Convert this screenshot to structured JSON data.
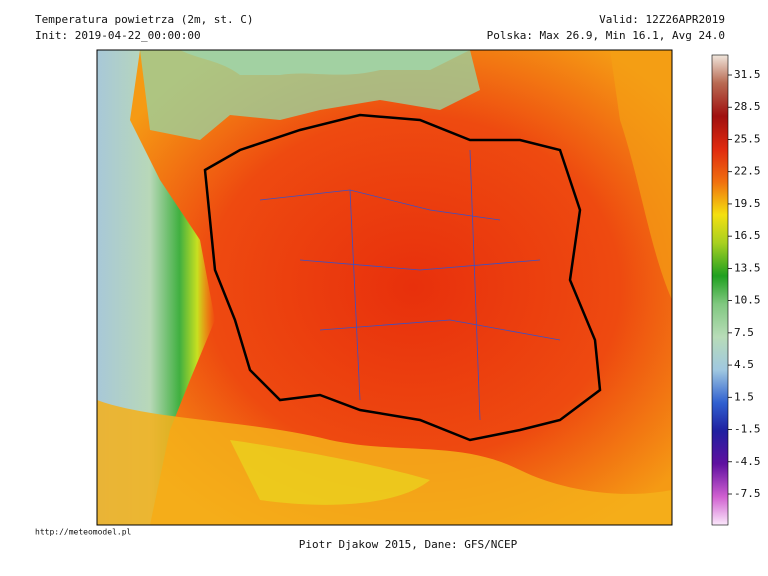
{
  "header": {
    "title": "Temperatura powietrza (2m, st. C)",
    "init": "Init: 2019-04-22_00:00:00",
    "valid": "Valid: 12Z26APR2019",
    "stats": "Polska: Max 26.9, Min 16.1, Avg 24.0"
  },
  "colorbar": {
    "ticks": [
      31.5,
      28.5,
      25.5,
      22.5,
      19.5,
      16.5,
      13.5,
      10.5,
      7.5,
      4.5,
      1.5,
      -1.5,
      -4.5,
      -7.5
    ]
  },
  "footer": {
    "url": "http://meteomodel.pl",
    "credit": "Piotr Djakow 2015, Dane: GFS/NCEP"
  }
}
